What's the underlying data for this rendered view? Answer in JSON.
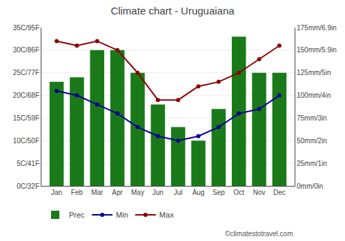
{
  "chart_data": {
    "type": "bar",
    "title": "Climate chart - Uruguaiana",
    "categories": [
      "Jan",
      "Feb",
      "Mar",
      "Apr",
      "May",
      "Jun",
      "Jul",
      "Aug",
      "Sep",
      "Oct",
      "Nov",
      "Dec"
    ],
    "series": [
      {
        "name": "Prec",
        "type": "bar",
        "axis": "y2",
        "color": "#1a7a1a",
        "values": [
          115,
          120,
          150,
          150,
          125,
          90,
          65,
          50,
          85,
          165,
          125,
          125
        ]
      },
      {
        "name": "Min",
        "type": "line",
        "color": "#000090",
        "marker": "circle",
        "line_style": "solid",
        "values": [
          21,
          20,
          18,
          16,
          13,
          11,
          10,
          11,
          13,
          16,
          17,
          20
        ]
      },
      {
        "name": "Max",
        "type": "line",
        "color": "#8b0000",
        "marker": "circle",
        "line_style": "solid",
        "values": [
          32,
          31,
          32,
          30,
          25,
          19,
          19,
          22,
          23,
          25,
          28,
          31
        ]
      }
    ],
    "ylim": [
      0,
      35
    ],
    "yticks": [
      {
        "value": 0,
        "label": "0C/32F"
      },
      {
        "value": 5,
        "label": "5C/41F"
      },
      {
        "value": 10,
        "label": "10C/50F"
      },
      {
        "value": 15,
        "label": "15C/59F"
      },
      {
        "value": 20,
        "label": "20C/68F"
      },
      {
        "value": 25,
        "label": "25C/77F"
      },
      {
        "value": 30,
        "label": "30C/86F"
      },
      {
        "value": 35,
        "label": "35C/95F"
      }
    ],
    "y2lim": [
      0,
      175
    ],
    "y2ticks": [
      {
        "value": 0,
        "label": "0mm/0in"
      },
      {
        "value": 25,
        "label": "25mm/1in"
      },
      {
        "value": 50,
        "label": "50mm/2in"
      },
      {
        "value": 75,
        "label": "75mm/3in"
      },
      {
        "value": 100,
        "label": "100mm/4in"
      },
      {
        "value": 125,
        "label": "125mm/5in"
      },
      {
        "value": 150,
        "label": "150mm/5.9in"
      },
      {
        "value": 175,
        "label": "175mm/6.9in"
      }
    ],
    "grid": true,
    "legend": "bottom",
    "annotations": [
      "©climatestotravel.com"
    ]
  }
}
